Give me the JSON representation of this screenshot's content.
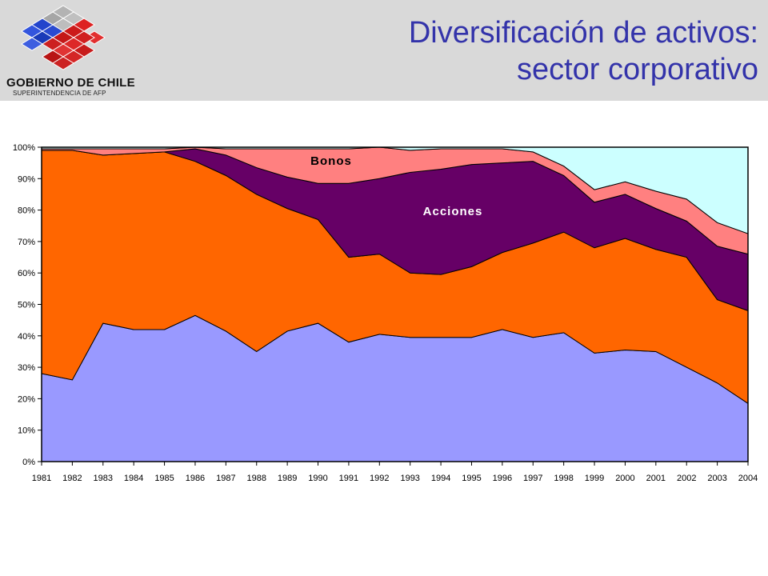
{
  "header": {
    "logo_title": "GOBIERNO DE CHILE",
    "logo_subtitle": "SUPERINTENDENCIA DE AFP",
    "title_line1": "Diversificación de activos:",
    "title_line2": "sector corporativo",
    "background": "#d9d9d9",
    "title_color": "#3333aa"
  },
  "chart_data": {
    "type": "area",
    "stacked": true,
    "categories": [
      "1981",
      "1982",
      "1983",
      "1984",
      "1985",
      "1986",
      "1987",
      "1988",
      "1989",
      "1990",
      "1991",
      "1992",
      "1993",
      "1994",
      "1995",
      "1996",
      "1997",
      "1998",
      "1999",
      "2000",
      "2001",
      "2002",
      "2003",
      "2004"
    ],
    "ylim": [
      0,
      100
    ],
    "yticks": [
      "0%",
      "10%",
      "20%",
      "30%",
      "40%",
      "50%",
      "60%",
      "70%",
      "80%",
      "90%",
      "100%"
    ],
    "series": [
      {
        "color": "#9999ff",
        "values": [
          28,
          26,
          44,
          42,
          42,
          46.5,
          41.5,
          35,
          41.5,
          44,
          38,
          40.5,
          39.5,
          39.5,
          39.5,
          42,
          39.5,
          41,
          34.5,
          35.5,
          35,
          30,
          25,
          18.5
        ]
      },
      {
        "color": "#ff6600",
        "values": [
          71,
          73,
          53.5,
          56,
          56.5,
          49,
          49.5,
          50,
          39,
          33,
          27,
          25.5,
          20.5,
          20,
          22.5,
          24.5,
          30,
          32,
          33.5,
          35.5,
          32.5,
          35,
          26.5,
          29.5
        ]
      },
      {
        "name": "Acciones",
        "color": "#660066",
        "values": [
          0,
          0,
          0,
          0,
          0,
          4,
          6.5,
          8.5,
          10,
          11.5,
          23.5,
          24,
          32,
          33.5,
          32.5,
          28.5,
          26,
          18,
          14.5,
          14,
          13,
          11.5,
          17,
          18
        ]
      },
      {
        "name": "Bonos",
        "color": "#ff8080",
        "values": [
          0.5,
          0.5,
          2,
          1.5,
          1,
          0.5,
          2,
          6,
          9,
          11,
          11,
          10,
          7,
          6.5,
          5,
          4.5,
          3,
          3,
          4,
          4,
          5.5,
          7,
          7.5,
          6.5
        ]
      },
      {
        "color": "#ccffff",
        "values": [
          0.5,
          0.5,
          0.5,
          0.5,
          0.5,
          0,
          0.5,
          0.5,
          0.5,
          0.5,
          0.5,
          0,
          1,
          0.5,
          0.5,
          0.5,
          1.5,
          6,
          13.5,
          11,
          14,
          16.5,
          24,
          27.5
        ]
      }
    ],
    "annotations": [
      "Bonos",
      "Acciones"
    ],
    "grid": false,
    "legend": "none"
  }
}
